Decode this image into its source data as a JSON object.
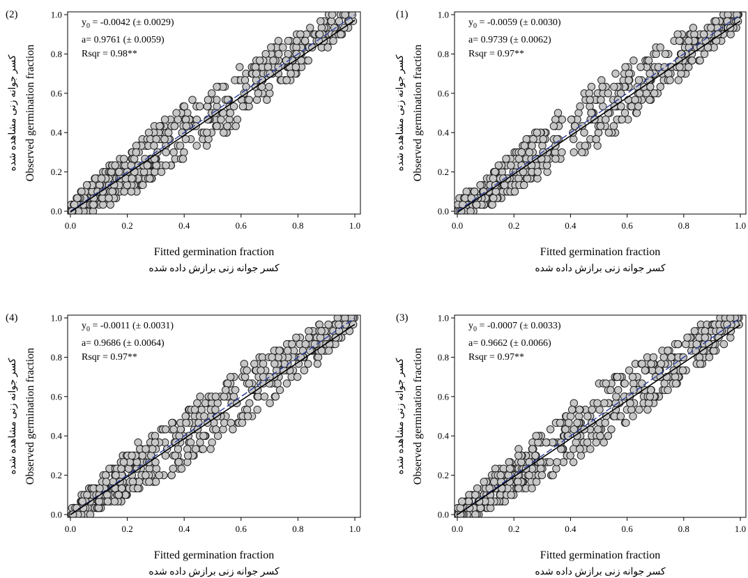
{
  "colors": {
    "point_fill": "#c7c7c7",
    "point_stroke": "#222222",
    "fit_line": "#000000",
    "ref_line": "#2b3c9a"
  },
  "chart_data": [
    {
      "type": "scatter",
      "panel_label": "(2)",
      "xlabel": "Fitted germination fraction",
      "xlabel_fa": "کسر جوانه زنی برازش داده شده",
      "ylabel": "Observed germination fraction",
      "ylabel_fa": "کسر جوانه زنی مشاهده شده",
      "xlim": [
        0,
        1
      ],
      "ylim": [
        0,
        1
      ],
      "xticks": [
        "0.0",
        "0.2",
        "0.4",
        "0.6",
        "0.8",
        "1.0"
      ],
      "yticks": [
        "0.0",
        "0.2",
        "0.4",
        "0.6",
        "0.8",
        "1.0"
      ],
      "stats": {
        "y0_label": "y",
        "y0_sub": "0",
        "y0_value": " = -0.0042 (± 0.0029)",
        "a": "a= 0.9761 (± 0.0059)",
        "rsqr": "Rsqr = 0.98**"
      },
      "fit": {
        "intercept": -0.0042,
        "slope": 0.9761
      },
      "reference_line": {
        "intercept": 0,
        "slope": 1
      },
      "grid": false
    },
    {
      "type": "scatter",
      "panel_label": "(1)",
      "xlabel": "Fitted germination fraction",
      "xlabel_fa": "کسر جوانه زنی برازش داده شده",
      "ylabel": "Observed germination fraction",
      "ylabel_fa": "کسر جوانه زنی مشاهده شده",
      "xlim": [
        0,
        1
      ],
      "ylim": [
        0,
        1
      ],
      "xticks": [
        "0.0",
        "0.2",
        "0.4",
        "0.6",
        "0.8",
        "1.0"
      ],
      "yticks": [
        "0.0",
        "0.2",
        "0.4",
        "0.6",
        "0.8",
        "1.0"
      ],
      "stats": {
        "y0_label": "y",
        "y0_sub": "0",
        "y0_value": " = -0.0059 (± 0.0030)",
        "a": "a= 0.9739 (± 0.0062)",
        "rsqr": "Rsqr = 0.97**"
      },
      "fit": {
        "intercept": -0.0059,
        "slope": 0.9739
      },
      "reference_line": {
        "intercept": 0,
        "slope": 1
      },
      "grid": false
    },
    {
      "type": "scatter",
      "panel_label": "(4)",
      "xlabel": "Fitted germination fraction",
      "xlabel_fa": "کسر جوانه زنی برازش داده شده",
      "ylabel": "Observed germination fraction",
      "ylabel_fa": "کسر جوانه زنی مشاهده شده",
      "xlim": [
        0,
        1
      ],
      "ylim": [
        0,
        1
      ],
      "xticks": [
        "0.0",
        "0.2",
        "0.4",
        "0.6",
        "0.8",
        "1.0"
      ],
      "yticks": [
        "0.0",
        "0.2",
        "0.4",
        "0.6",
        "0.8",
        "1.0"
      ],
      "stats": {
        "y0_label": "y",
        "y0_sub": "0",
        "y0_value": " = -0.0011 (± 0.0031)",
        "a": "a= 0.9686 (± 0.0064)",
        "rsqr": "Rsqr = 0.97**"
      },
      "fit": {
        "intercept": -0.0011,
        "slope": 0.9686
      },
      "reference_line": {
        "intercept": 0,
        "slope": 1
      },
      "grid": false
    },
    {
      "type": "scatter",
      "panel_label": "(3)",
      "xlabel": "Fitted germination fraction",
      "xlabel_fa": "کسر جوانه زنی برازش داده شده",
      "ylabel": "Observed germination fraction",
      "ylabel_fa": "کسر جوانه زنی مشاهده شده",
      "xlim": [
        0,
        1
      ],
      "ylim": [
        0,
        1
      ],
      "xticks": [
        "0.0",
        "0.2",
        "0.4",
        "0.6",
        "0.8",
        "1.0"
      ],
      "yticks": [
        "0.0",
        "0.2",
        "0.4",
        "0.6",
        "0.8",
        "1.0"
      ],
      "stats": {
        "y0_label": "y",
        "y0_sub": "0",
        "y0_value": " = -0.0007 (± 0.0033)",
        "a": "a= 0.9662 (± 0.0066)",
        "rsqr": "Rsqr = 0.97**"
      },
      "fit": {
        "intercept": -0.0007,
        "slope": 0.9662
      },
      "reference_line": {
        "intercept": 0,
        "slope": 1
      },
      "grid": false
    }
  ]
}
